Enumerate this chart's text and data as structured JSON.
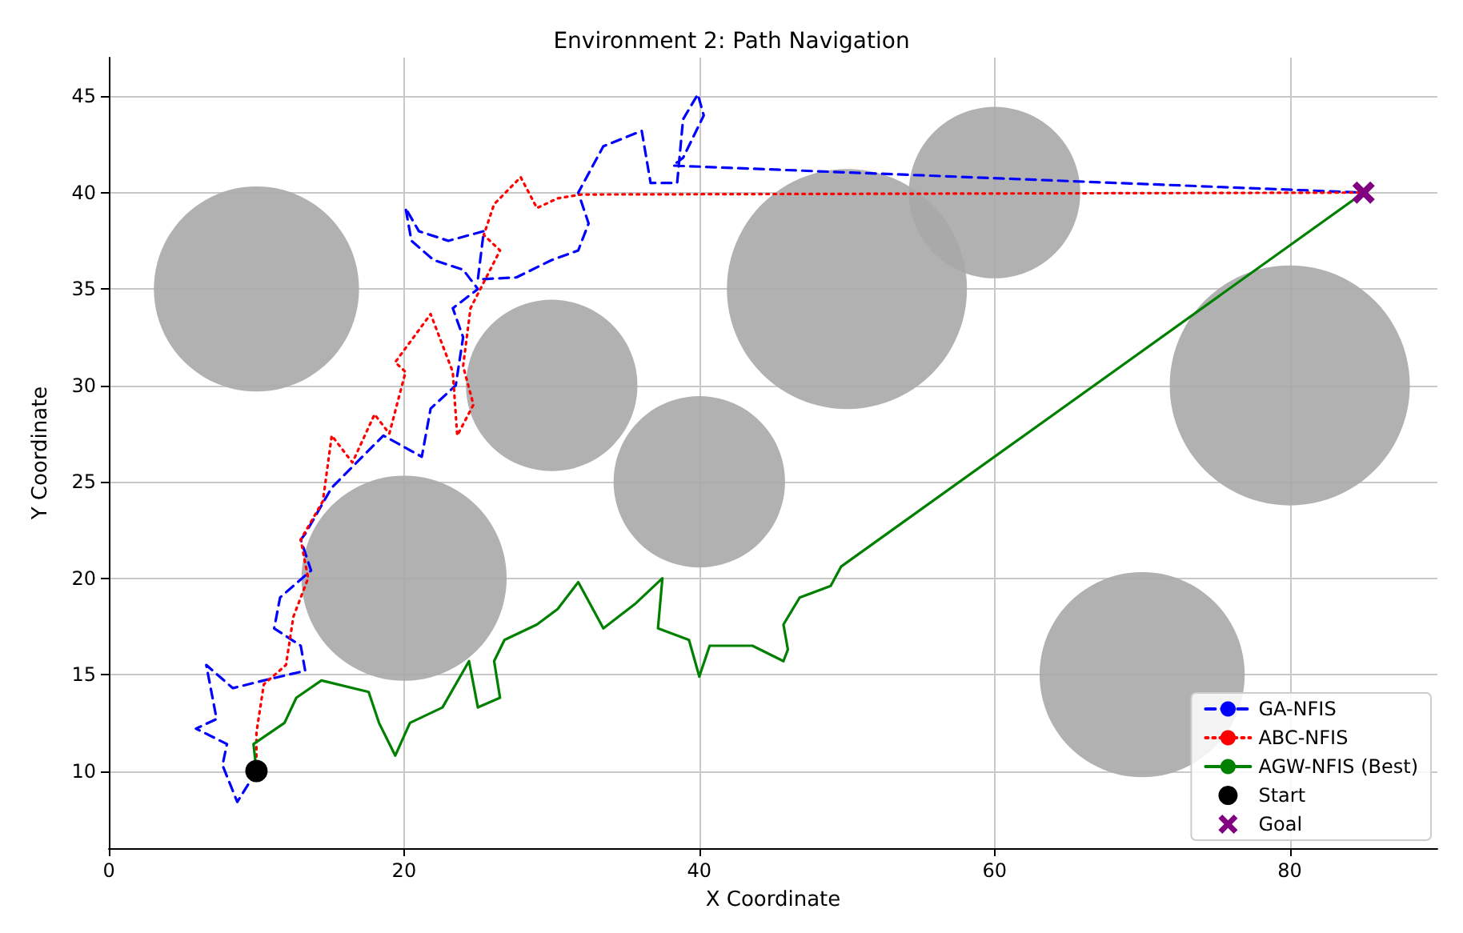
{
  "chart_data": {
    "type": "line",
    "title": "Environment 2: Path Navigation",
    "xlabel": "X Coordinate",
    "ylabel": "Y Coordinate",
    "xlim": [
      0,
      90
    ],
    "ylim": [
      6,
      47
    ],
    "xticks": [
      0,
      20,
      40,
      60,
      80
    ],
    "yticks": [
      10,
      15,
      20,
      25,
      30,
      35,
      40,
      45
    ],
    "grid": true,
    "legend": "bottom right",
    "series": [
      {
        "type": "bubble",
        "color": "#a9a9a9",
        "x": [
          10,
          20,
          30,
          40,
          50,
          60,
          70,
          80
        ],
        "values": [
          35,
          20,
          30,
          25,
          35,
          40,
          15,
          30
        ],
        "sizes": [
          0.73,
          0.73,
          0.51,
          0.51,
          1,
          0.51,
          0.73,
          1
        ]
      },
      {
        "name": "GA-NFIS",
        "color": "#0000ff",
        "line_style": "dashed",
        "marker": "none",
        "x": [
          10,
          8.7,
          7.7,
          8,
          5.9,
          7.3,
          6.6,
          8.4,
          10.5,
          13.3,
          13,
          11.2,
          11.6,
          13.7,
          13,
          13.3,
          15.1,
          18.6,
          21.2,
          21.8,
          23.5,
          24,
          23.3,
          25,
          24,
          22,
          20.5,
          20.1,
          21,
          23,
          25.4,
          25,
          27.6,
          30,
          31.8,
          32.5,
          31.8,
          33.5,
          36.1,
          36.7,
          38.5,
          38.9,
          39.9,
          40.3,
          38.9,
          38.2,
          85
        ],
        "values": [
          10,
          8.4,
          10.3,
          11.4,
          12.2,
          12.7,
          15.5,
          14.3,
          14.7,
          15.2,
          16.5,
          17.4,
          19,
          20.4,
          22,
          22.3,
          24.7,
          27.4,
          26.3,
          28.8,
          30,
          32.5,
          34,
          35,
          36,
          36.5,
          37.5,
          39.2,
          38,
          37.5,
          38,
          35.5,
          35.6,
          36.5,
          37,
          38.4,
          40,
          42.4,
          43.2,
          40.5,
          40.5,
          43.8,
          45.1,
          44,
          41.8,
          41.4,
          40
        ]
      },
      {
        "name": "ABC-NFIS",
        "color": "#ff0000",
        "line_style": "dotted",
        "marker": "none",
        "x": [
          10,
          10,
          10.5,
          12,
          12.5,
          13.5,
          13,
          14.5,
          15.1,
          16.5,
          18,
          19,
          20.1,
          19.4,
          21.8,
          23.3,
          23.6,
          24.7,
          24,
          24.5,
          26.5,
          25.4,
          26.1,
          27.9,
          29,
          30.4,
          32,
          85
        ],
        "values": [
          10,
          12,
          14.5,
          15.5,
          18,
          20,
          22,
          24,
          27.4,
          26,
          28.5,
          27.5,
          30.7,
          31.2,
          33.7,
          30.7,
          27.4,
          29,
          31,
          34,
          37,
          37.8,
          39.4,
          40.8,
          39.2,
          39.7,
          39.9,
          40
        ]
      },
      {
        "name": "AGW-NFIS (Best)",
        "color": "#008000",
        "line_style": "solid",
        "marker": "none",
        "x": [
          10,
          9.8,
          11.9,
          12.7,
          14.4,
          17.6,
          18.3,
          19.4,
          20.4,
          22.6,
          24.4,
          25,
          26.5,
          26.1,
          26.8,
          29,
          30.4,
          31.8,
          33.5,
          35.7,
          37.5,
          37.2,
          39.3,
          40,
          40.7,
          43.6,
          45.7,
          46,
          45.7,
          46.8,
          48.9,
          49.6,
          85
        ],
        "values": [
          10,
          11.4,
          12.5,
          13.8,
          14.7,
          14.1,
          12.5,
          10.8,
          12.5,
          13.3,
          15.7,
          13.3,
          13.8,
          15.7,
          16.8,
          17.6,
          18.4,
          19.8,
          17.4,
          18.7,
          20,
          17.4,
          16.8,
          14.9,
          16.5,
          16.5,
          15.7,
          16.3,
          17.6,
          19,
          19.6,
          20.6,
          40
        ]
      },
      {
        "name": "Start",
        "type": "scatter",
        "color": "#000000",
        "marker": "circle",
        "x": [
          10
        ],
        "values": [
          10
        ]
      },
      {
        "name": "Goal",
        "type": "scatter",
        "color": "#800080",
        "marker": "cross",
        "x": [
          85
        ],
        "values": [
          40
        ]
      }
    ]
  }
}
